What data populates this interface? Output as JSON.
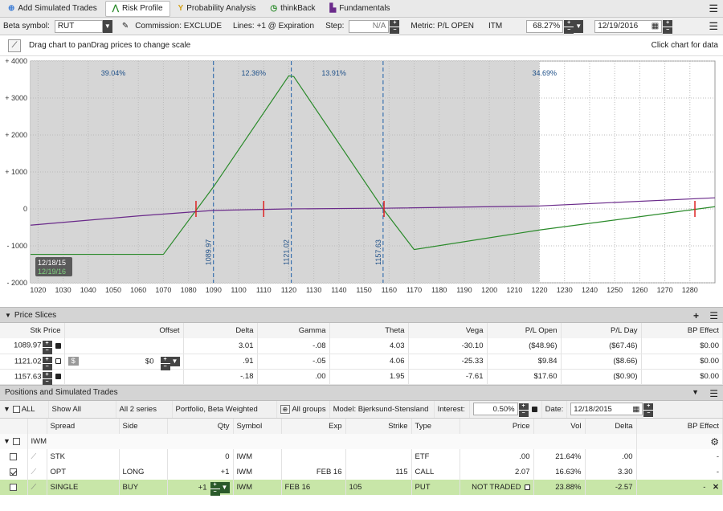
{
  "tabs": [
    {
      "label": "Add Simulated Trades",
      "icon": "plus-icon"
    },
    {
      "label": "Risk Profile",
      "icon": "risk-profile-icon",
      "active": true
    },
    {
      "label": "Probability Analysis",
      "icon": "probability-icon"
    },
    {
      "label": "thinkBack",
      "icon": "thinkback-icon"
    },
    {
      "label": "Fundamentals",
      "icon": "fundamentals-icon"
    }
  ],
  "toolbar": {
    "beta_label": "Beta symbol:",
    "beta_value": "RUT",
    "commission": "Commission: EXCLUDE",
    "lines": "Lines: +1 @ Expiration",
    "step_label": "Step:",
    "step_value": "N/A",
    "metric": "Metric: P/L OPEN",
    "itm": "ITM",
    "itm_value": "68.27%",
    "date_value": "12/19/2016"
  },
  "chartbar": {
    "left": "Drag chart to panDrag prices to change scale",
    "right": "Click chart for data"
  },
  "chart_data": {
    "type": "line",
    "ylabels": [
      "+ 4000",
      "+ 3000",
      "+ 2000",
      "+ 1000",
      "0",
      "- 1000",
      "- 2000"
    ],
    "yticks": [
      4000,
      3000,
      2000,
      1000,
      0,
      -1000,
      -2000
    ],
    "ylim": [
      -2000,
      4000
    ],
    "xticks": [
      1020,
      1030,
      1040,
      1050,
      1060,
      1070,
      1080,
      1090,
      1100,
      1110,
      1120,
      1130,
      1140,
      1150,
      1160,
      1170,
      1180,
      1190,
      1200,
      1210,
      1220,
      1230,
      1240,
      1250,
      1260,
      1270,
      1280
    ],
    "xlim": [
      1017,
      1290
    ],
    "shade_until": 1220,
    "vlines": [
      {
        "x": 1089.97,
        "label": "1089.97"
      },
      {
        "x": 1121.02,
        "label": "1121.02"
      },
      {
        "x": 1157.63,
        "label": "1157.63"
      }
    ],
    "pcts": [
      {
        "x": 1050,
        "label": "39.04%"
      },
      {
        "x": 1106,
        "label": "12.36%"
      },
      {
        "x": 1138,
        "label": "13.91%"
      },
      {
        "x": 1222,
        "label": "34.69%"
      }
    ],
    "series": [
      {
        "name": "12/19/2016",
        "color": "#2a8a2a",
        "x": [
          1017,
          1070,
          1090,
          1120,
          1122,
          1157.63,
          1170,
          1220,
          1290
        ],
        "y": [
          -1230,
          -1230,
          600,
          3600,
          3580,
          0,
          -1100,
          -570,
          60
        ]
      },
      {
        "name": "12/18/2015",
        "color": "#6a2a8a",
        "x": [
          1017,
          1060,
          1090,
          1120,
          1160,
          1220,
          1290
        ],
        "y": [
          -440,
          -190,
          -40,
          0,
          20,
          80,
          300
        ]
      }
    ],
    "red_marks": [
      1083,
      1110,
      1158,
      1282
    ],
    "date_box": [
      "12/18/15",
      "12/19/16"
    ]
  },
  "price_slices": {
    "title": "Price Slices",
    "headers": [
      "Stk Price",
      "Offset",
      "Delta",
      "Gamma",
      "Theta",
      "Vega",
      "P/L Open",
      "P/L Day",
      "BP Effect"
    ],
    "offset_value": "$0",
    "rows": [
      {
        "price": "1089.97",
        "delta": "3.01",
        "gamma": "-.08",
        "theta": "4.03",
        "vega": "-30.10",
        "plopen": "($48.96)",
        "plday": "($67.46)",
        "bp": "$0.00"
      },
      {
        "price": "1121.02",
        "delta": ".91",
        "gamma": "-.05",
        "theta": "4.06",
        "vega": "-25.33",
        "plopen": "$9.84",
        "plday": "($8.66)",
        "bp": "$0.00"
      },
      {
        "price": "1157.63",
        "delta": "-.18",
        "gamma": ".00",
        "theta": "1.95",
        "vega": "-7.61",
        "plopen": "$17.60",
        "plday": "($0.90)",
        "bp": "$0.00"
      }
    ]
  },
  "positions": {
    "title": "Positions and Simulated Trades",
    "all": "ALL",
    "show": "Show All",
    "series": "All 2 series",
    "portfolio": "Portfolio, Beta Weighted",
    "groups": "All groups",
    "model": "Model: Bjerksund-Stensland",
    "interest_label": "Interest:",
    "interest": "0.50%",
    "date_label": "Date:",
    "date": "12/18/2015",
    "headers": [
      "Spread",
      "Side",
      "Qty",
      "Symbol",
      "Exp",
      "Strike",
      "Type",
      "Price",
      "Vol",
      "Delta",
      "BP Effect"
    ],
    "group": "IWM",
    "rows": [
      {
        "spread": "STK",
        "side": "",
        "qty": "0",
        "symbol": "IWM",
        "exp": "",
        "strike": "",
        "type": "ETF",
        "price": ".00",
        "vol": "21.64%",
        "delta": ".00",
        "bp": "-",
        "checked": false
      },
      {
        "spread": "OPT",
        "side": "LONG",
        "qty": "+1",
        "symbol": "IWM",
        "exp": "FEB 16",
        "strike": "115",
        "type": "CALL",
        "price": "2.07",
        "vol": "16.63%",
        "delta": "3.30",
        "bp": "-",
        "checked": true
      },
      {
        "spread": "SINGLE",
        "side": "BUY",
        "qty": "+1",
        "symbol": "IWM",
        "exp": "FEB 16",
        "strike": "105",
        "type": "PUT",
        "price": "NOT TRADED",
        "vol": "23.88%",
        "delta": "-2.57",
        "bp": "-",
        "checked": false
      }
    ]
  }
}
